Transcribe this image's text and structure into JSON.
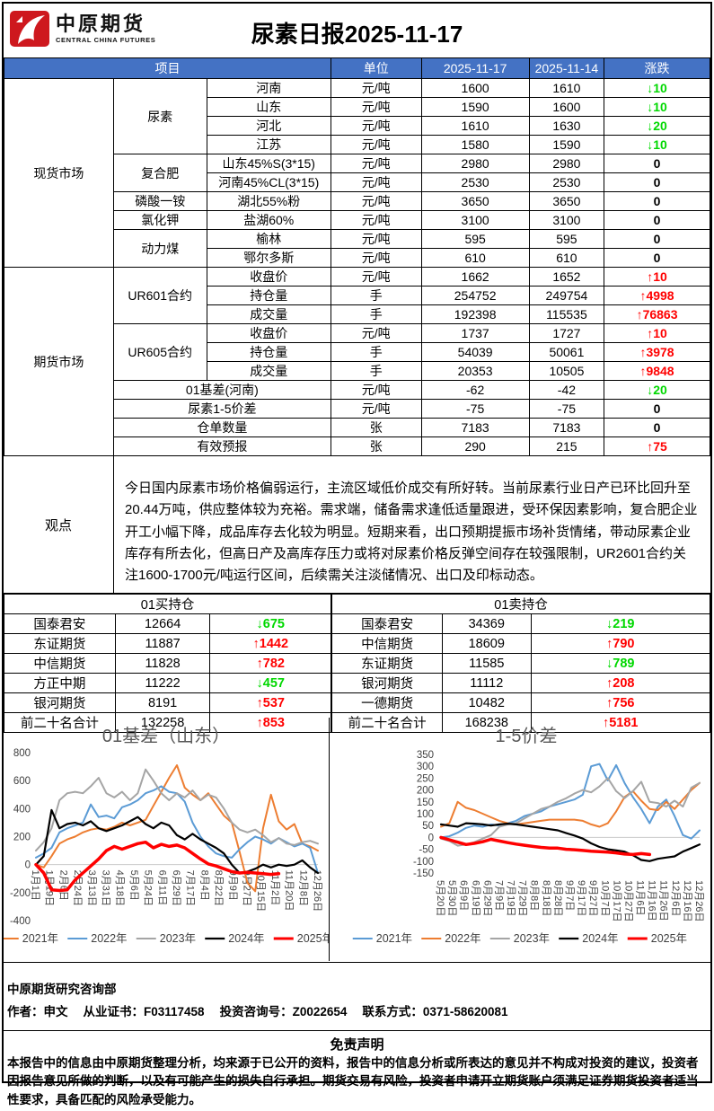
{
  "palette": {
    "header_blue": "#4472C4",
    "up_red": "#FF0000",
    "down_green": "#00D800"
  },
  "header": {
    "logo_cn": "中原期货",
    "logo_en": "CENTRAL CHINA FUTURES",
    "title": "尿素日报2025-11-17"
  },
  "main_table": {
    "col_project": "项目",
    "col_unit": "单位",
    "col_d1": "2025-11-17",
    "col_d2": "2025-11-14",
    "col_chg": "涨跌",
    "group_spot": "现货市场",
    "group_futures": "期货市场",
    "rows": [
      {
        "sub": "尿素",
        "item": "河南",
        "unit": "元/吨",
        "v1": "1600",
        "v2": "1610",
        "chg": "↓10",
        "dir": "down"
      },
      {
        "item": "山东",
        "unit": "元/吨",
        "v1": "1590",
        "v2": "1600",
        "chg": "↓10",
        "dir": "down"
      },
      {
        "item": "河北",
        "unit": "元/吨",
        "v1": "1610",
        "v2": "1630",
        "chg": "↓20",
        "dir": "down"
      },
      {
        "item": "江苏",
        "unit": "元/吨",
        "v1": "1580",
        "v2": "1590",
        "chg": "↓10",
        "dir": "down"
      },
      {
        "sub": "复合肥",
        "item": "山东45%S(3*15)",
        "unit": "元/吨",
        "v1": "2980",
        "v2": "2980",
        "chg": "0",
        "dir": "flat"
      },
      {
        "item": "河南45%CL(3*15)",
        "unit": "元/吨",
        "v1": "2530",
        "v2": "2530",
        "chg": "0",
        "dir": "flat"
      },
      {
        "sub": "磷酸一铵",
        "item": "湖北55%粉",
        "unit": "元/吨",
        "v1": "3650",
        "v2": "3650",
        "chg": "0",
        "dir": "flat"
      },
      {
        "sub": "氯化钾",
        "item": "盐湖60%",
        "unit": "元/吨",
        "v1": "3100",
        "v2": "3100",
        "chg": "0",
        "dir": "flat"
      },
      {
        "sub": "动力煤",
        "item": "榆林",
        "unit": "元/吨",
        "v1": "595",
        "v2": "595",
        "chg": "0",
        "dir": "flat"
      },
      {
        "item": "鄂尔多斯",
        "unit": "元/吨",
        "v1": "610",
        "v2": "610",
        "chg": "0",
        "dir": "flat"
      },
      {
        "sub": "UR601合约",
        "item": "收盘价",
        "unit": "元/吨",
        "v1": "1662",
        "v2": "1652",
        "chg": "↑10",
        "dir": "up"
      },
      {
        "item": "持仓量",
        "unit": "手",
        "v1": "254752",
        "v2": "249754",
        "chg": "↑4998",
        "dir": "up"
      },
      {
        "item": "成交量",
        "unit": "手",
        "v1": "192398",
        "v2": "115535",
        "chg": "↑76863",
        "dir": "up"
      },
      {
        "sub": "UR605合约",
        "item": "收盘价",
        "unit": "元/吨",
        "v1": "1737",
        "v2": "1727",
        "chg": "↑10",
        "dir": "up"
      },
      {
        "item": "持仓量",
        "unit": "手",
        "v1": "54039",
        "v2": "50061",
        "chg": "↑3978",
        "dir": "up"
      },
      {
        "item": "成交量",
        "unit": "手",
        "v1": "20353",
        "v2": "10505",
        "chg": "↑9848",
        "dir": "up"
      },
      {
        "label": "01基差(河南)",
        "unit": "元/吨",
        "v1": "-62",
        "v2": "-42",
        "chg": "↓20",
        "dir": "down"
      },
      {
        "label": "尿素1-5价差",
        "unit": "元/吨",
        "v1": "-75",
        "v2": "-75",
        "chg": "0",
        "dir": "flat"
      },
      {
        "label": "仓单数量",
        "unit": "张",
        "v1": "7183",
        "v2": "7183",
        "chg": "0",
        "dir": "flat"
      },
      {
        "label": "有效预报",
        "unit": "张",
        "v1": "290",
        "v2": "215",
        "chg": "↑75",
        "dir": "up"
      }
    ]
  },
  "opinion": {
    "label": "观点",
    "text": "今日国内尿素市场价格偏弱运行，主流区域低价成交有所好转。当前尿素行业日产已环比回升至20.44万吨，供应整体较为充裕。需求端，储备需求逢低适量跟进，受环保因素影响，复合肥企业开工小幅下降，成品库存去化较为明显。短期来看，出口预期提振市场补货情绪，带动尿素企业库存有所去化，但高日产及高库存压力或将对尿素价格反弹空间存在较强限制，UR2601合约关注1600-1700元/吨运行区间，后续需关注淡储情况、出口及印标动态。"
  },
  "positions": {
    "buy": {
      "title": "01买持仓",
      "rows": [
        {
          "name": "国泰君安",
          "value": "12664",
          "chg": "↓675",
          "dir": "down"
        },
        {
          "name": "东证期货",
          "value": "11887",
          "chg": "↑1442",
          "dir": "up"
        },
        {
          "name": "中信期货",
          "value": "11828",
          "chg": "↑782",
          "dir": "up"
        },
        {
          "name": "方正中期",
          "value": "11222",
          "chg": "↓457",
          "dir": "down"
        },
        {
          "name": "银河期货",
          "value": "8191",
          "chg": "↑537",
          "dir": "up"
        },
        {
          "name": "前二十名合计",
          "value": "132258",
          "chg": "↑853",
          "dir": "up"
        }
      ]
    },
    "sell": {
      "title": "01卖持仓",
      "rows": [
        {
          "name": "国泰君安",
          "value": "34369",
          "chg": "↓219",
          "dir": "down"
        },
        {
          "name": "中信期货",
          "value": "18609",
          "chg": "↑790",
          "dir": "up"
        },
        {
          "name": "东证期货",
          "value": "11585",
          "chg": "↓789",
          "dir": "down"
        },
        {
          "name": "银河期货",
          "value": "11112",
          "chg": "↑208",
          "dir": "up"
        },
        {
          "name": "一德期货",
          "value": "10482",
          "chg": "↑756",
          "dir": "up"
        },
        {
          "name": "前二十名合计",
          "value": "168238",
          "chg": "↑5181",
          "dir": "up"
        }
      ]
    }
  },
  "chart_data": [
    {
      "type": "line",
      "title": "01基差（山东）",
      "xlabel": "",
      "ylabel": "",
      "ylim": [
        -400,
        800
      ],
      "yticks": [
        800,
        600,
        400,
        200,
        0,
        -200,
        -400
      ],
      "grid": false,
      "zero_line": true,
      "legend_position": "bottom",
      "labels_at": "zero",
      "x_count": 37,
      "categories": [
        "1月1日",
        "1月19日",
        "2月6日",
        "2月24日",
        "3月13日",
        "3月31日",
        "4月18日",
        "5月6日",
        "5月24日",
        "6月11日",
        "6月29日",
        "7月17日",
        "8月4日",
        "8月22日",
        "9月9日",
        "9月27日",
        "10月15日",
        "11月2日",
        "11月20日",
        "12月8日",
        "12月26日"
      ],
      "series": [
        {
          "name": "2021年",
          "color": "#ED7D31",
          "width": 2,
          "values": [
            0,
            -20,
            60,
            150,
            180,
            200,
            230,
            250,
            260,
            250,
            270,
            300,
            280,
            300,
            320,
            420,
            520,
            620,
            710,
            550,
            500,
            460,
            510,
            430,
            350,
            300,
            90,
            -130,
            -190,
            260,
            500,
            310,
            250,
            290,
            150,
            130,
            100
          ]
        },
        {
          "name": "2022年",
          "color": "#5B9BD5",
          "width": 2,
          "values": [
            50,
            80,
            120,
            230,
            260,
            280,
            300,
            430,
            340,
            350,
            330,
            410,
            430,
            460,
            510,
            530,
            560,
            520,
            510,
            450,
            300,
            200,
            130,
            80,
            60,
            50,
            110,
            160,
            200,
            180,
            150,
            190,
            160,
            130,
            150,
            120,
            -60
          ]
        },
        {
          "name": "2023年",
          "color": "#A5A5A5",
          "width": 2,
          "values": [
            100,
            160,
            260,
            460,
            510,
            520,
            510,
            560,
            620,
            510,
            480,
            520,
            460,
            510,
            680,
            600,
            510,
            460,
            510,
            480,
            530,
            460,
            500,
            480,
            400,
            300,
            250,
            230,
            250,
            210,
            160,
            190,
            150,
            140,
            160,
            170,
            150
          ]
        },
        {
          "name": "2024年",
          "color": "#000000",
          "width": 2.2,
          "values": [
            0,
            60,
            390,
            260,
            290,
            300,
            280,
            310,
            260,
            240,
            260,
            280,
            310,
            340,
            290,
            260,
            300,
            280,
            210,
            180,
            220,
            180,
            150,
            120,
            80,
            0,
            -60,
            -50,
            -30,
            0,
            -20,
            0,
            -10,
            0,
            30,
            -20,
            -60
          ]
        },
        {
          "name": "2025年",
          "color": "#FF0000",
          "width": 3.5,
          "values": [
            0,
            -60,
            -180,
            -185,
            -180,
            -110,
            -60,
            -10,
            40,
            100,
            130,
            110,
            130,
            150,
            160,
            120,
            145,
            130,
            140,
            120,
            80,
            40,
            5,
            -10,
            -30,
            -50,
            -60,
            -55,
            -60,
            -65,
            -70,
            -65
          ]
        }
      ]
    },
    {
      "type": "line",
      "title": "1-5价差",
      "xlabel": "",
      "ylabel": "",
      "ylim": [
        -150,
        350
      ],
      "yticks": [
        350,
        300,
        250,
        200,
        150,
        100,
        50,
        0,
        -50,
        -100,
        -150
      ],
      "grid": false,
      "zero_line": true,
      "legend_position": "bottom",
      "labels_at": "bottom",
      "x_count": 32,
      "categories": [
        "5月20日",
        "5月30日",
        "6月9日",
        "6月19日",
        "6月29日",
        "7月9日",
        "7月19日",
        "7月29日",
        "8月8日",
        "8月18日",
        "8月28日",
        "9月7日",
        "9月17日",
        "9月27日",
        "10月7日",
        "10月17日",
        "10月27日",
        "11月6日",
        "11月16日",
        "11月26日",
        "12月6日",
        "12月16日",
        "12月26日"
      ],
      "series": [
        {
          "name": "2021年",
          "color": "#5B9BD5",
          "width": 2,
          "values": [
            0,
            5,
            20,
            40,
            50,
            45,
            55,
            50,
            60,
            70,
            90,
            100,
            110,
            130,
            140,
            150,
            160,
            180,
            300,
            310,
            240,
            305,
            230,
            170,
            120,
            60,
            130,
            160,
            90,
            10,
            -5,
            30
          ]
        },
        {
          "name": "2022年",
          "color": "#ED7D31",
          "width": 2,
          "values": [
            45,
            60,
            150,
            125,
            115,
            100,
            85,
            70,
            60,
            55,
            60,
            65,
            70,
            75,
            75,
            75,
            75,
            70,
            55,
            45,
            60,
            110,
            170,
            195,
            155,
            120,
            115,
            150,
            120,
            160,
            200,
            230
          ]
        },
        {
          "name": "2023年",
          "color": "#A5A5A5",
          "width": 2,
          "values": [
            -5,
            -15,
            -35,
            -30,
            -20,
            -5,
            10,
            45,
            55,
            60,
            80,
            100,
            120,
            130,
            150,
            165,
            185,
            200,
            190,
            215,
            250,
            195,
            165,
            195,
            235,
            150,
            145,
            130,
            155,
            130,
            210,
            230
          ]
        },
        {
          "name": "2024年",
          "color": "#000000",
          "width": 2.2,
          "values": [
            55,
            50,
            45,
            60,
            58,
            55,
            50,
            55,
            58,
            55,
            50,
            45,
            40,
            35,
            30,
            18,
            8,
            -5,
            -25,
            -40,
            -50,
            -55,
            -60,
            -75,
            -95,
            -100,
            -90,
            -85,
            -80,
            -60,
            -45,
            -30
          ]
        },
        {
          "name": "2025年",
          "color": "#FF0000",
          "width": 3.5,
          "values": [
            0,
            -10,
            -20,
            -30,
            -25,
            -18,
            -8,
            -15,
            -22,
            -28,
            -33,
            -38,
            -42,
            -45,
            -45,
            -50,
            -52,
            -55,
            -58,
            -60,
            -62,
            -65,
            -70,
            -72,
            -68,
            -72
          ]
        }
      ]
    }
  ],
  "footer": {
    "dept": "中原期货研究咨询部",
    "author": "作者：申文",
    "cert": "从业证书：F03117458",
    "advisory": "投资咨询号：Z0022654",
    "contact": "联系方式：0371-58620081"
  },
  "disclaimer": {
    "title": "免责声明",
    "text": "本报告中的信息由中原期货整理分析，均来源于已公开的资料，报告中的信息分析或所表达的意见并不构成对投资的建议，投资者因报告意见所做的判断，以及有可能产生的损失自行承担。期货交易有风险，投资者申请开立期货账户须满足证券期货投资者适当性要求，具备匹配的风险承受能力。"
  }
}
